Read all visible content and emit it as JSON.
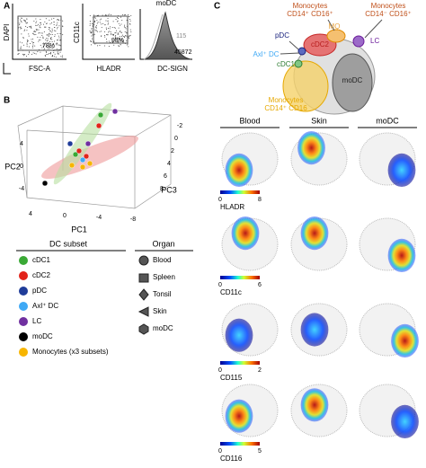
{
  "panel_a": {
    "label": "A",
    "plot1": {
      "y_label": "DAPI",
      "x_label": "FSC-A",
      "gate_value": "78%"
    },
    "plot2": {
      "y_label": "CD11c",
      "x_label": "HLADR",
      "gate_value": "98%"
    },
    "plot3": {
      "title": "moDC",
      "x_label": "DC-SIGN",
      "values": [
        "115",
        "45872"
      ]
    }
  },
  "panel_b": {
    "label": "B",
    "pc1": {
      "label": "PC1",
      "ticks": [
        "4",
        "0",
        "-4",
        "-8"
      ]
    },
    "pc2": {
      "label": "PC2",
      "ticks": [
        "4",
        "0",
        "-4"
      ]
    },
    "pc3": {
      "label": "PC3",
      "ticks": [
        "-2",
        "0",
        "2",
        "4",
        "6",
        "8"
      ]
    },
    "dc_subset_title": "DC subset",
    "subsets": [
      {
        "name": "cDC1",
        "color": "#3aa935"
      },
      {
        "name": "cDC2",
        "color": "#e2231a"
      },
      {
        "name": "pDC",
        "color": "#1f3c99"
      },
      {
        "name": "Axl⁺ DC",
        "color": "#3fa9f5"
      },
      {
        "name": "LC",
        "color": "#7030a0"
      },
      {
        "name": "moDC",
        "color": "#000000"
      },
      {
        "name": "Monocytes (x3 subsets)",
        "color": "#f7b500"
      }
    ],
    "organ_title": "Organ",
    "organs": [
      "Blood",
      "Spleen",
      "Tonsil",
      "Skin",
      "moDC"
    ]
  },
  "panel_c": {
    "label": "C",
    "diagram": {
      "mono_pos_pos": [
        "Monocytes",
        "CD14⁺ CD16⁺"
      ],
      "mono_neg_pos": [
        "Monocytes",
        "CD14⁻ CD16⁺"
      ],
      "mq": "MQ",
      "cdc2": "cDC2",
      "pdc": "pDC",
      "lc": "LC",
      "axl_dc": "Axl⁺ DC",
      "cdc1": "cDC1",
      "modc": "moDC",
      "mono_pos": [
        "Monocytes",
        "CD14⁺ CD16"
      ]
    },
    "columns": [
      "Blood",
      "Skin",
      "moDC"
    ],
    "markers": [
      {
        "name": "HLADR",
        "range": [
          0,
          8
        ]
      },
      {
        "name": "CD11c",
        "range": [
          0,
          6
        ]
      },
      {
        "name": "CD115",
        "range": [
          0,
          2
        ]
      },
      {
        "name": "CD116",
        "range": [
          0,
          5
        ]
      }
    ]
  }
}
